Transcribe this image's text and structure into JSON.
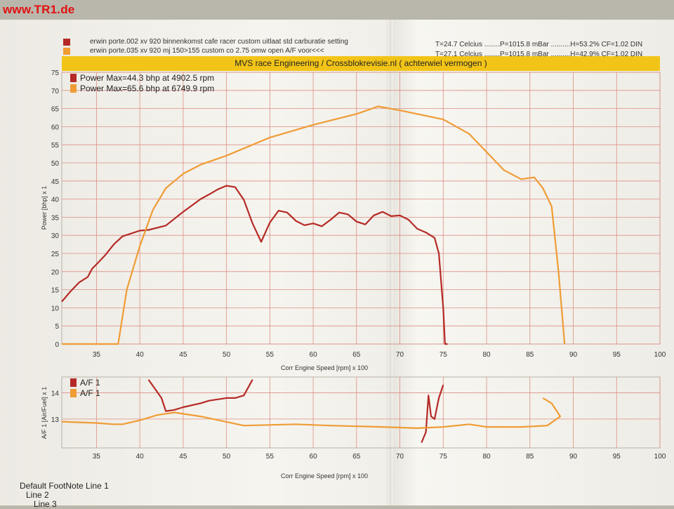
{
  "watermark": "www.TR1.de",
  "header": {
    "run1": "erwin porte.002 xv 920   binnenkomst cafe racer custom uitlaat std carburatie setting",
    "run2": "erwin porte.035 xv 920   mj 150>155 custom co 2.75 omw open  A/F voor<<<",
    "cond1": "T=24.7 Celcius ........P=1015.8 mBar ..........H=53.2% CF=1.02 DIN",
    "cond2": "T=27.1 Celcius ........P=1015.8 mBar ..........H=42.9% CF=1.02 DIN",
    "banner": "MVS race Engineering / Crossblokrevisie.nl  ( achterwiel vermogen )"
  },
  "colors": {
    "red": "#b52a26",
    "orange": "#ef9c35",
    "grid": "#dc8f85",
    "banner": "#f2c418"
  },
  "chart_data": [
    {
      "type": "line",
      "title": "",
      "xlabel": "Corr Engine Speed [rpm] x 100",
      "ylabel": "Power [bhp] x 1",
      "xlim": [
        31,
        100
      ],
      "ylim": [
        0,
        75
      ],
      "grid": true,
      "legend_position": "top-left",
      "x_ticks": [
        35,
        40,
        45,
        50,
        55,
        60,
        65,
        70,
        75,
        80,
        85,
        90,
        95,
        100
      ],
      "y_ticks": [
        0,
        5,
        10,
        15,
        20,
        25,
        30,
        35,
        40,
        45,
        50,
        55,
        60,
        65,
        70,
        75
      ],
      "series": [
        {
          "name": "Power Max=44.3 bhp at 4902.5 rpm",
          "color": "#b52a26",
          "x": [
            31,
            32,
            33,
            34,
            34.5,
            35,
            36,
            37,
            38,
            40,
            41,
            43,
            45,
            47,
            48,
            49,
            50,
            51,
            52,
            53,
            54,
            55,
            56,
            57,
            58,
            59,
            60,
            61,
            62,
            63,
            64,
            65,
            66,
            67,
            68,
            69,
            70,
            71,
            72,
            73,
            74,
            74.5,
            75,
            75.2,
            75.5
          ],
          "y": [
            11.7,
            14.5,
            17,
            18.5,
            20.8,
            22,
            24.5,
            27.5,
            29.7,
            31.3,
            31.5,
            32.7,
            36.5,
            40,
            41.3,
            42.7,
            43.7,
            43.3,
            39.8,
            33.3,
            28.2,
            33.5,
            36.8,
            36.3,
            34,
            32.8,
            33.3,
            32.5,
            34.3,
            36.3,
            35.8,
            33.8,
            33,
            35.5,
            36.5,
            35.3,
            35.5,
            34.3,
            31.8,
            30.8,
            29.3,
            25,
            10,
            0,
            0
          ]
        },
        {
          "name": "Power Max=65.6 bhp at 6749.9 rpm",
          "color": "#ef9c35",
          "x": [
            31,
            37.5,
            38.5,
            40,
            41.5,
            43,
            45,
            47,
            50,
            55,
            60,
            65,
            67.5,
            70,
            75,
            78,
            80,
            82,
            84,
            85.5,
            86.5,
            87.5,
            88.3,
            89
          ],
          "y": [
            0,
            0,
            15,
            27,
            37,
            43,
            47,
            49.5,
            52,
            57,
            60.5,
            63.5,
            65.6,
            64.5,
            62,
            58,
            53,
            48,
            45.5,
            46,
            43,
            38,
            20,
            0
          ]
        }
      ]
    },
    {
      "type": "line",
      "title": "",
      "xlabel": "Corr Engine Speed [rpm] x 100",
      "ylabel": "A/F 1 [Air/Fuel] x 1",
      "xlim": [
        31,
        100
      ],
      "ylim": [
        11.9,
        14.6
      ],
      "grid": true,
      "legend_position": "top-left",
      "x_ticks": [
        35,
        40,
        45,
        50,
        55,
        60,
        65,
        70,
        75,
        80,
        85,
        90,
        95,
        100
      ],
      "y_ticks": [
        13,
        14
      ],
      "series": [
        {
          "name": "A/F 1",
          "color": "#b52a26",
          "x": [
            41,
            42.5,
            43,
            44,
            45,
            47,
            48,
            49,
            50,
            51,
            52,
            53,
            72.5,
            73,
            73.3,
            73.6,
            74,
            74.5,
            75
          ],
          "y": [
            14.5,
            13.8,
            13.3,
            13.35,
            13.45,
            13.6,
            13.7,
            13.75,
            13.8,
            13.8,
            13.9,
            14.5,
            12.1,
            12.5,
            13.9,
            13.1,
            13.0,
            13.8,
            14.3
          ]
        },
        {
          "name": "A/F 1",
          "color": "#ef9c35",
          "x": [
            31,
            35,
            37,
            38,
            40,
            42,
            44,
            47,
            52,
            58,
            62,
            68,
            72,
            75,
            78,
            80,
            84,
            87,
            88.5,
            87.5,
            86.5
          ],
          "y": [
            12.9,
            12.85,
            12.8,
            12.8,
            12.95,
            13.15,
            13.25,
            13.1,
            12.75,
            12.8,
            12.75,
            12.7,
            12.65,
            12.7,
            12.8,
            12.7,
            12.7,
            12.75,
            13.1,
            13.6,
            13.8
          ]
        }
      ]
    }
  ],
  "footnotes": [
    "Default FootNote Line 1",
    "Line 2",
    "Line 3"
  ]
}
